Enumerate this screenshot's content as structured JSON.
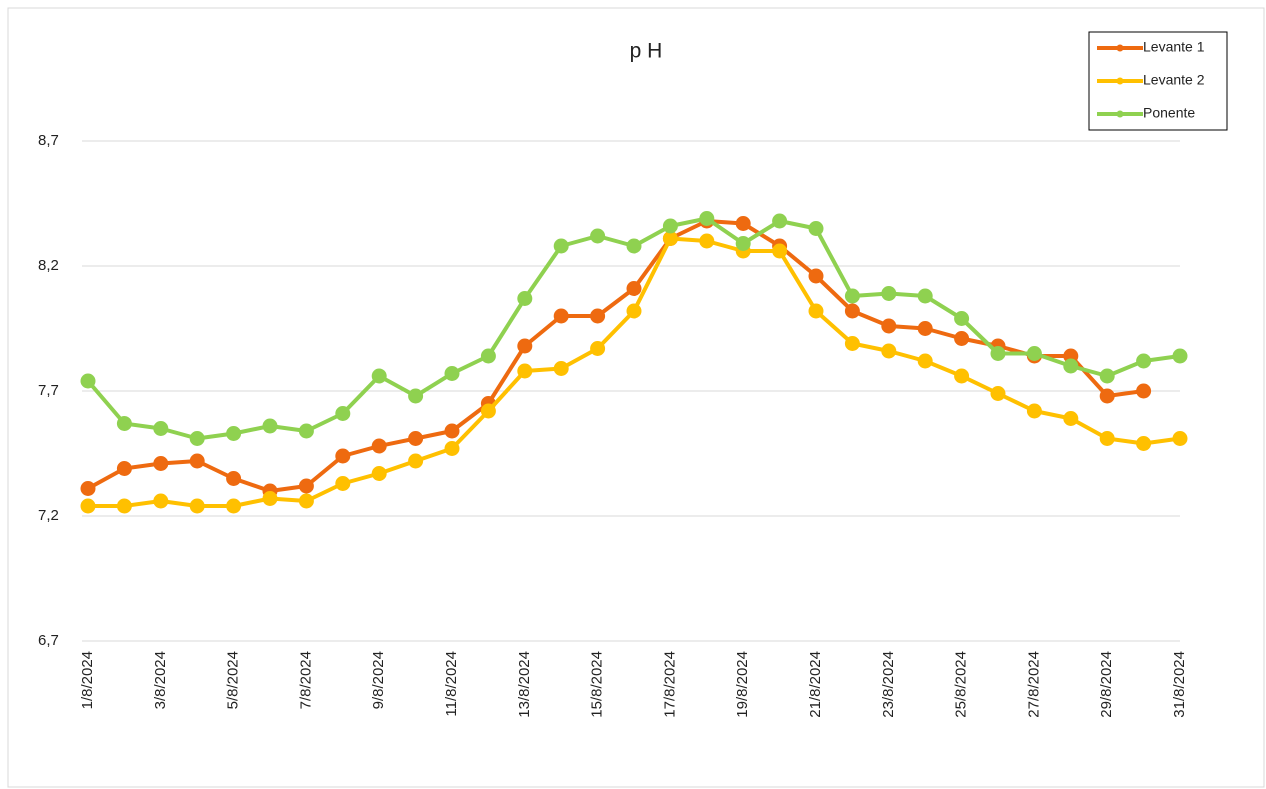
{
  "chart_data": {
    "type": "line",
    "title": "p H",
    "categories": [
      "1/8/2024",
      null,
      "3/8/2024",
      null,
      "5/8/2024",
      null,
      "7/8/2024",
      null,
      "9/8/2024",
      null,
      "11/8/2024",
      null,
      "13/8/2024",
      null,
      "15/8/2024",
      null,
      "17/8/2024",
      null,
      "19/8/2024",
      null,
      "21/8/2024",
      null,
      "23/8/2024",
      null,
      "25/8/2024",
      null,
      "27/8/2024",
      null,
      "29/8/2024",
      null,
      "31/8/2024"
    ],
    "series": [
      {
        "name": "Levante 1",
        "color": "#ee6a10",
        "values": [
          7.31,
          7.39,
          7.41,
          7.42,
          7.35,
          7.3,
          7.32,
          7.44,
          7.48,
          7.51,
          7.54,
          7.65,
          7.88,
          8.0,
          8.0,
          8.11,
          8.31,
          8.38,
          8.37,
          8.28,
          8.16,
          8.02,
          7.96,
          7.95,
          7.91,
          7.88,
          7.84,
          7.84,
          7.68,
          7.7,
          null
        ]
      },
      {
        "name": "Levante 2",
        "color": "#ffc000",
        "values": [
          7.24,
          7.24,
          7.26,
          7.24,
          7.24,
          7.27,
          7.26,
          7.33,
          7.37,
          7.42,
          7.47,
          7.62,
          7.78,
          7.79,
          7.87,
          8.02,
          8.31,
          8.3,
          8.26,
          8.26,
          8.02,
          7.89,
          7.86,
          7.82,
          7.76,
          7.69,
          7.62,
          7.59,
          7.51,
          7.49,
          7.51
        ]
      },
      {
        "name": "Ponente",
        "color": "#8fd150",
        "values": [
          7.74,
          7.57,
          7.55,
          7.51,
          7.53,
          7.56,
          7.54,
          7.61,
          7.76,
          7.68,
          7.77,
          7.84,
          8.07,
          8.28,
          8.32,
          8.28,
          8.36,
          8.39,
          8.29,
          8.38,
          8.35,
          8.08,
          8.09,
          8.08,
          7.99,
          7.85,
          7.85,
          7.8,
          7.76,
          7.82,
          7.84
        ]
      }
    ],
    "ylim": [
      6.7,
      8.7
    ],
    "yticks": [
      {
        "value": 6.7,
        "label": "6,7"
      },
      {
        "value": 7.2,
        "label": "7,2"
      },
      {
        "value": 7.7,
        "label": "7,7"
      },
      {
        "value": 8.2,
        "label": "8,2"
      },
      {
        "value": 8.7,
        "label": "8,7"
      }
    ],
    "grid": true,
    "legend_position": "top-right"
  }
}
